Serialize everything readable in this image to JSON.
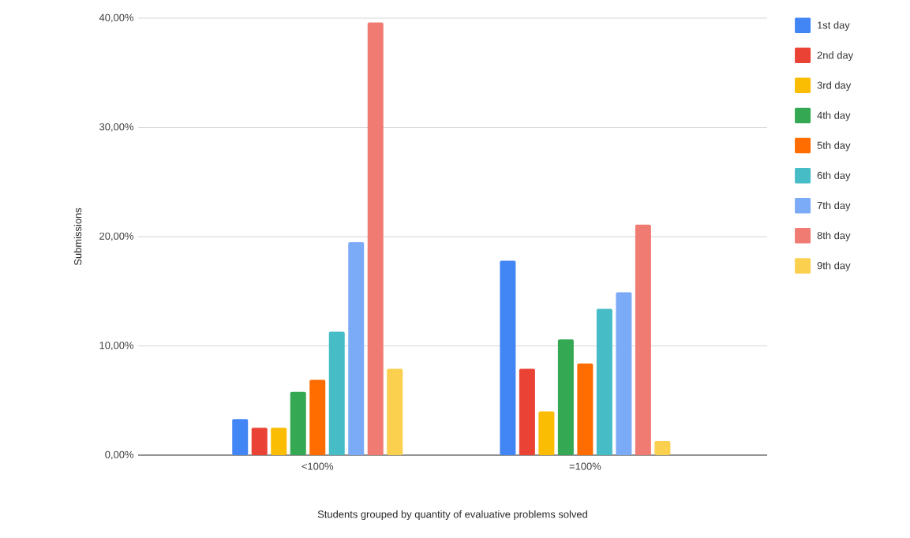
{
  "chart_data": {
    "type": "bar",
    "xlabel": "Students grouped by quantity of evaluative problems solved",
    "ylabel": "Submissions",
    "categories": [
      "<100%",
      "=100%"
    ],
    "series": [
      {
        "name": "1st day",
        "color": "#4285f4",
        "values": [
          3.3,
          17.8
        ]
      },
      {
        "name": "2nd day",
        "color": "#ea4335",
        "values": [
          2.5,
          7.9
        ]
      },
      {
        "name": "3rd day",
        "color": "#fbbc04",
        "values": [
          2.5,
          4.0
        ]
      },
      {
        "name": "4th day",
        "color": "#34a853",
        "values": [
          5.8,
          10.6
        ]
      },
      {
        "name": "5th day",
        "color": "#ff6d01",
        "values": [
          6.9,
          8.4
        ]
      },
      {
        "name": "6th day",
        "color": "#46bdc6",
        "values": [
          11.3,
          13.4
        ]
      },
      {
        "name": "7th day",
        "color": "#7baaf7",
        "values": [
          19.5,
          14.9
        ]
      },
      {
        "name": "8th day",
        "color": "#f07b72",
        "values": [
          39.6,
          21.1
        ]
      },
      {
        "name": "9th day",
        "color": "#fcd04f",
        "values": [
          7.9,
          1.3
        ]
      }
    ],
    "ylim": [
      0,
      40
    ],
    "yticks": [
      {
        "value": 0,
        "label": "0,00%"
      },
      {
        "value": 10,
        "label": "10,00%"
      },
      {
        "value": 20,
        "label": "20,00%"
      },
      {
        "value": 30,
        "label": "30,00%"
      },
      {
        "value": 40,
        "label": "40,00%"
      }
    ],
    "grid": "y",
    "legend": "right"
  }
}
